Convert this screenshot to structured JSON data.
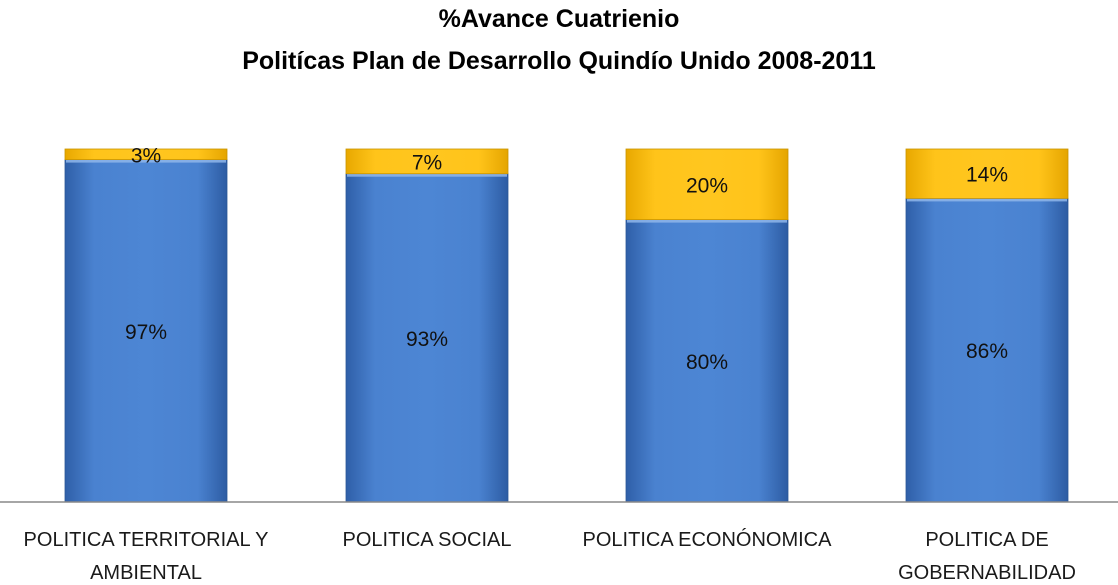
{
  "chart_data": {
    "type": "bar",
    "stacked": true,
    "title": "%Avance Cuatrienio",
    "subtitle": "Politícas Plan de Desarrollo Quindío Unido 2008-2011",
    "categories": [
      [
        "POLITICA TERRITORIAL Y",
        "AMBIENTAL"
      ],
      [
        "POLITICA SOCIAL"
      ],
      [
        "POLITICA ECONÓNOMICA"
      ],
      [
        "POLITICA DE",
        "GOBERNABILIDAD"
      ]
    ],
    "series": [
      {
        "values": [
          97,
          93,
          80,
          86
        ],
        "labels": [
          "97%",
          "93%",
          "80%",
          "86%"
        ],
        "color": "#3f74c4"
      },
      {
        "values": [
          3,
          7,
          20,
          14
        ],
        "labels": [
          "3%",
          "7%",
          "20%",
          "14%"
        ],
        "color": "#ffc000"
      }
    ],
    "ylim": [
      0,
      100
    ],
    "grid": false,
    "legend": "none"
  }
}
